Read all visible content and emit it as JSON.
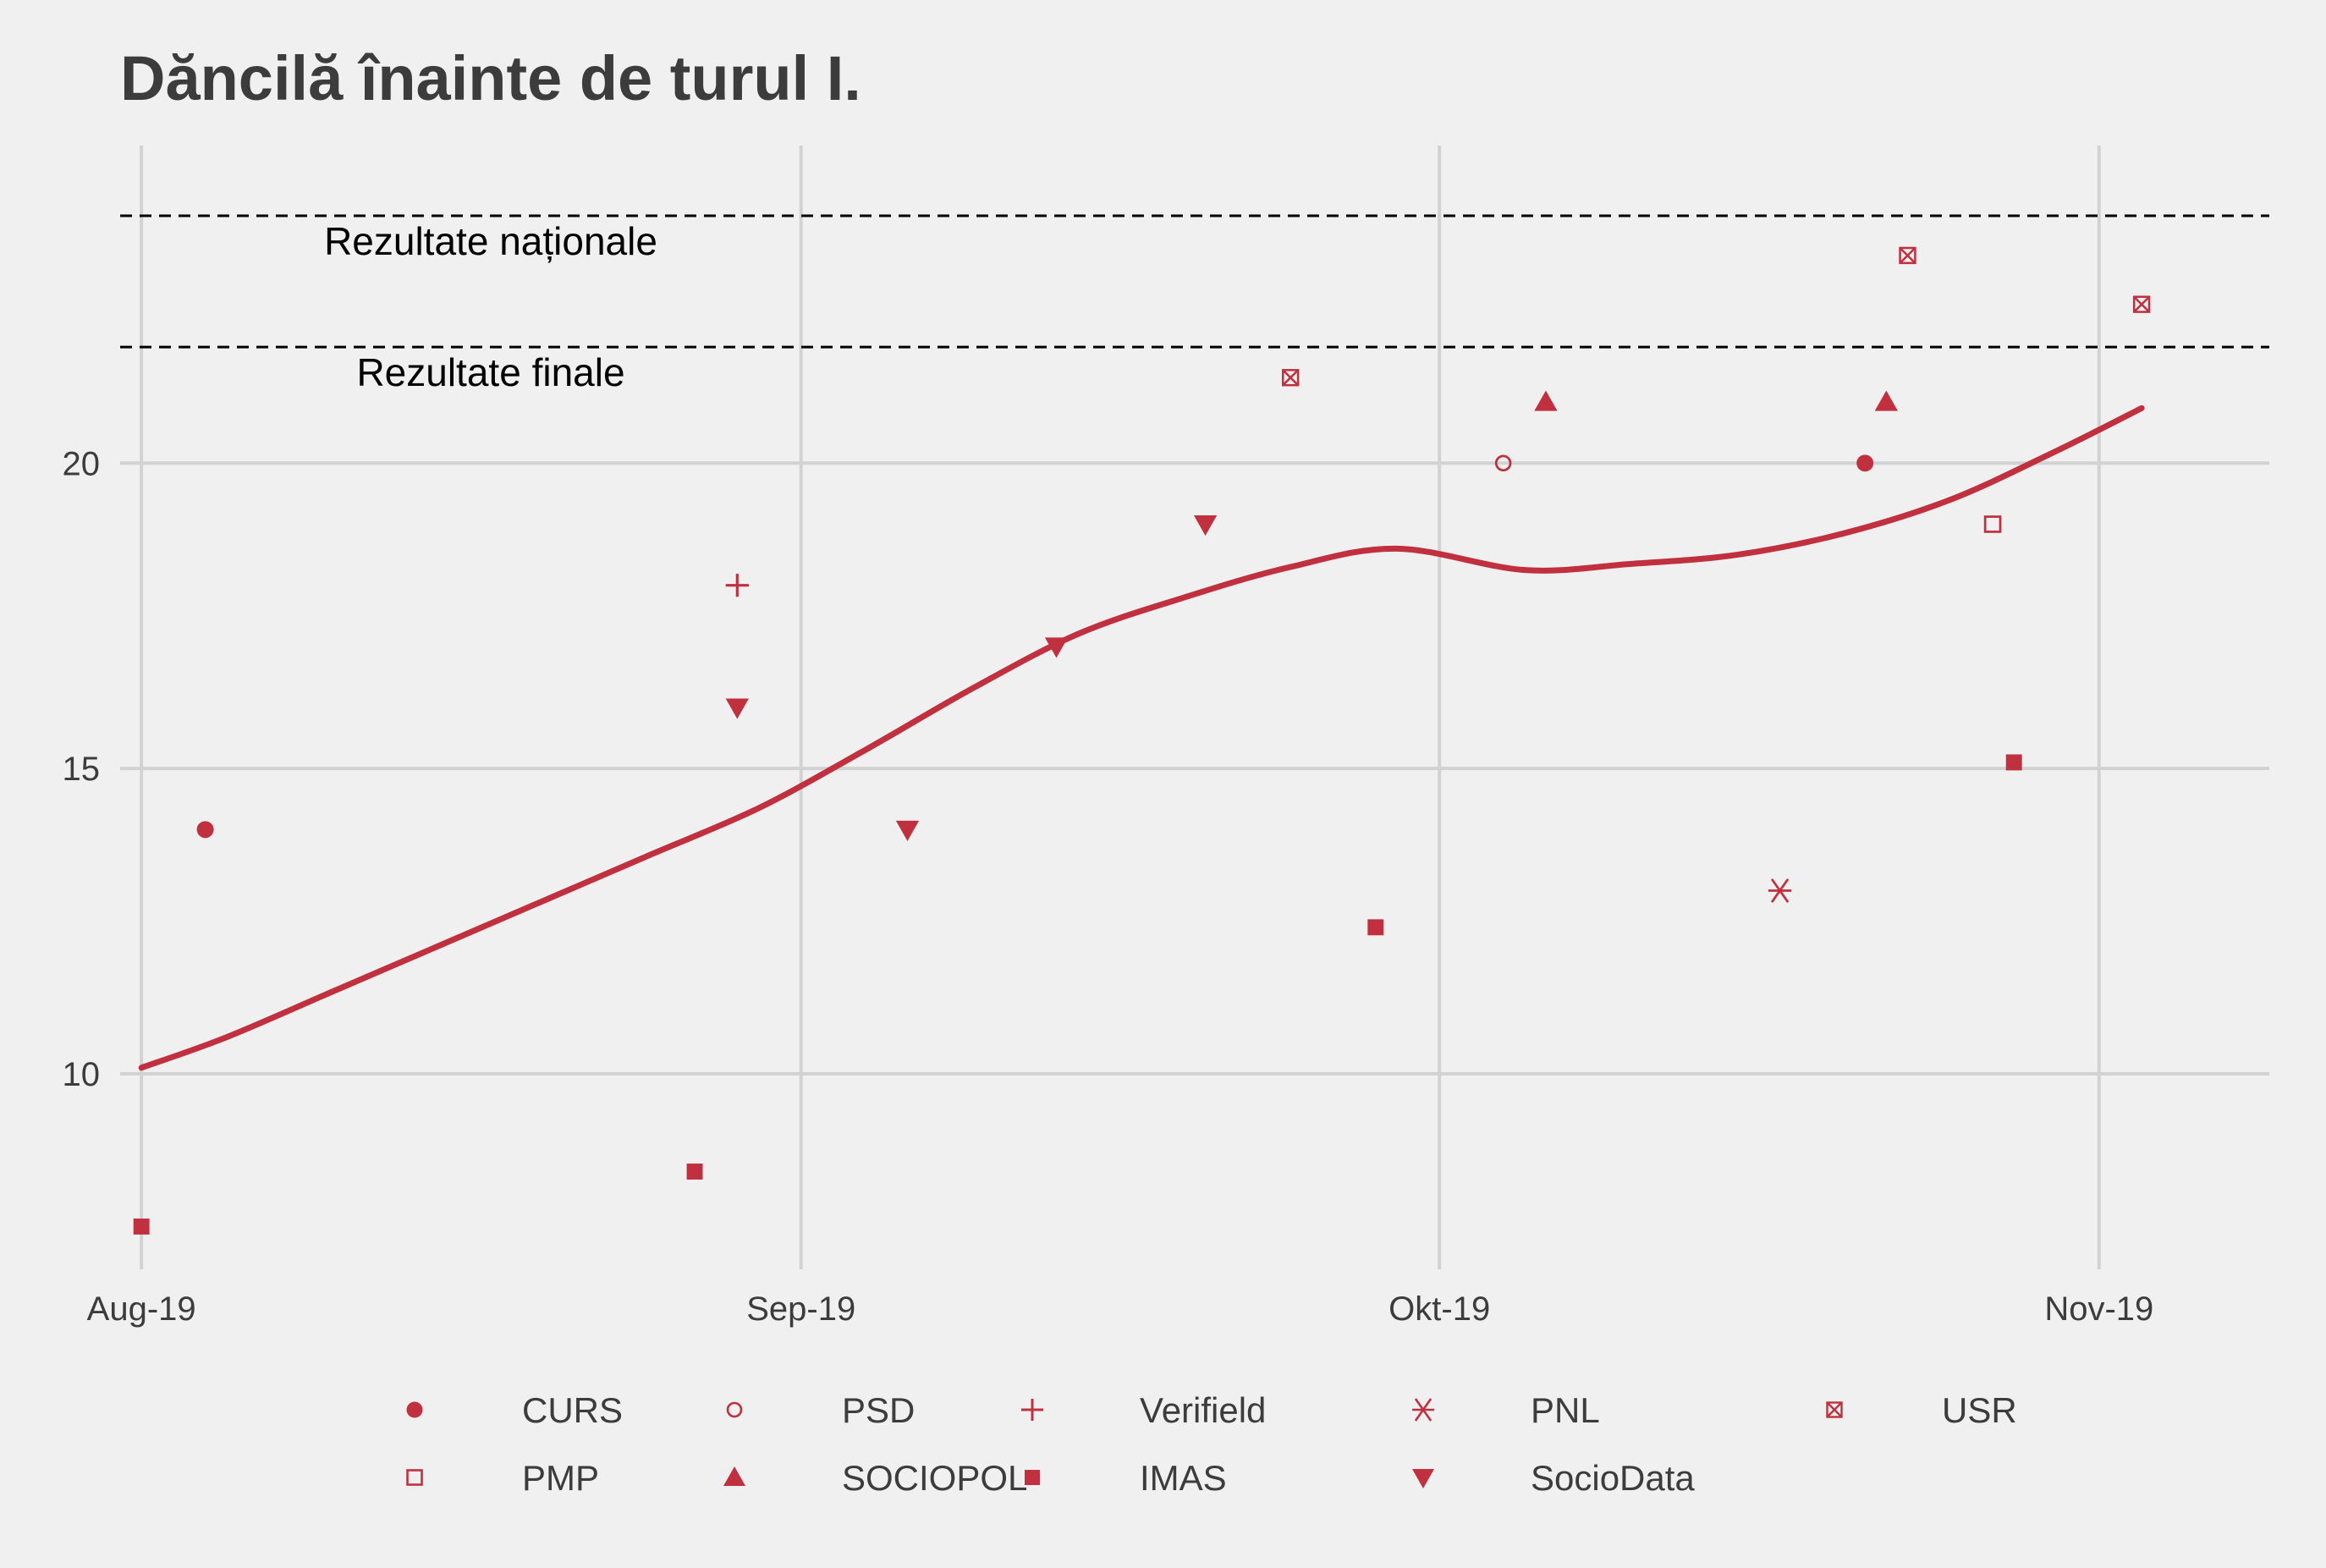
{
  "title": "Dăncilă înainte de turul I.",
  "colors": {
    "background": "#f0f0f0",
    "grid": "#d2d2d2",
    "series": "#c0303f",
    "text": "#3c3c3c",
    "reference": "#000000"
  },
  "chart_data": {
    "type": "scatter",
    "title": "Dăncilă înainte de turul I.",
    "xlabel": "",
    "ylabel": "",
    "x_axis": {
      "type": "date",
      "range": [
        "2019-07-31",
        "2019-11-09"
      ],
      "ticks": [
        {
          "date": "2019-08-01",
          "label": "Aug-19"
        },
        {
          "date": "2019-09-01",
          "label": "Sep-19"
        },
        {
          "date": "2019-10-01",
          "label": "Okt-19"
        },
        {
          "date": "2019-11-01",
          "label": "Nov-19"
        }
      ]
    },
    "y_axis": {
      "range": [
        6.8,
        25.2
      ],
      "ticks": [
        10,
        15,
        20
      ]
    },
    "grid": true,
    "legend_position": "bottom",
    "reference_lines": [
      {
        "y": 24.05,
        "label": "Rezultate naționale",
        "style": "dashed"
      },
      {
        "y": 21.9,
        "label": "Rezultate finale",
        "style": "dashed"
      }
    ],
    "points": [
      {
        "date": "2019-08-01",
        "value": 7.5,
        "pollster": "IMAS"
      },
      {
        "date": "2019-08-04",
        "value": 14.0,
        "pollster": "CURS"
      },
      {
        "date": "2019-08-27",
        "value": 8.4,
        "pollster": "IMAS"
      },
      {
        "date": "2019-08-29",
        "value": 18.0,
        "pollster": "Verifield"
      },
      {
        "date": "2019-08-29",
        "value": 16.0,
        "pollster": "SocioData"
      },
      {
        "date": "2019-09-06",
        "value": 14.0,
        "pollster": "SocioData"
      },
      {
        "date": "2019-09-13",
        "value": 17.0,
        "pollster": "SocioData"
      },
      {
        "date": "2019-09-20",
        "value": 19.0,
        "pollster": "SocioData"
      },
      {
        "date": "2019-09-24",
        "value": 21.4,
        "pollster": "USR"
      },
      {
        "date": "2019-09-28",
        "value": 12.4,
        "pollster": "IMAS"
      },
      {
        "date": "2019-10-04",
        "value": 20.0,
        "pollster": "PSD"
      },
      {
        "date": "2019-10-06",
        "value": 21.0,
        "pollster": "SOCIOPOL"
      },
      {
        "date": "2019-10-17",
        "value": 13.0,
        "pollster": "PNL"
      },
      {
        "date": "2019-10-21",
        "value": 20.0,
        "pollster": "CURS"
      },
      {
        "date": "2019-10-22",
        "value": 21.0,
        "pollster": "SOCIOPOL"
      },
      {
        "date": "2019-10-23",
        "value": 23.4,
        "pollster": "USR"
      },
      {
        "date": "2019-10-27",
        "value": 19.0,
        "pollster": "PMP"
      },
      {
        "date": "2019-10-28",
        "value": 15.1,
        "pollster": "IMAS"
      },
      {
        "date": "2019-11-03",
        "value": 22.6,
        "pollster": "USR"
      }
    ],
    "trend": [
      {
        "date": "2019-08-01",
        "value": 10.1
      },
      {
        "date": "2019-08-05",
        "value": 10.6
      },
      {
        "date": "2019-08-10",
        "value": 11.35
      },
      {
        "date": "2019-08-15",
        "value": 12.1
      },
      {
        "date": "2019-08-20",
        "value": 12.85
      },
      {
        "date": "2019-08-25",
        "value": 13.6
      },
      {
        "date": "2019-08-30",
        "value": 14.35
      },
      {
        "date": "2019-09-04",
        "value": 15.3
      },
      {
        "date": "2019-09-09",
        "value": 16.3
      },
      {
        "date": "2019-09-14",
        "value": 17.2
      },
      {
        "date": "2019-09-19",
        "value": 17.8
      },
      {
        "date": "2019-09-24",
        "value": 18.3
      },
      {
        "date": "2019-09-29",
        "value": 18.6
      },
      {
        "date": "2019-10-05",
        "value": 18.25
      },
      {
        "date": "2019-10-10",
        "value": 18.35
      },
      {
        "date": "2019-10-15",
        "value": 18.5
      },
      {
        "date": "2019-10-20",
        "value": 18.85
      },
      {
        "date": "2019-10-25",
        "value": 19.4
      },
      {
        "date": "2019-10-30",
        "value": 20.2
      },
      {
        "date": "2019-11-03",
        "value": 20.9
      }
    ],
    "legend": [
      {
        "name": "CURS",
        "shape": "filled-circle"
      },
      {
        "name": "PMP",
        "shape": "open-square"
      },
      {
        "name": "PSD",
        "shape": "open-circle"
      },
      {
        "name": "SOCIOPOL",
        "shape": "filled-triangle-up"
      },
      {
        "name": "Verifield",
        "shape": "plus"
      },
      {
        "name": "IMAS",
        "shape": "filled-square"
      },
      {
        "name": "PNL",
        "shape": "asterisk"
      },
      {
        "name": "SocioData",
        "shape": "filled-triangle-down"
      },
      {
        "name": "USR",
        "shape": "square-x"
      }
    ]
  }
}
